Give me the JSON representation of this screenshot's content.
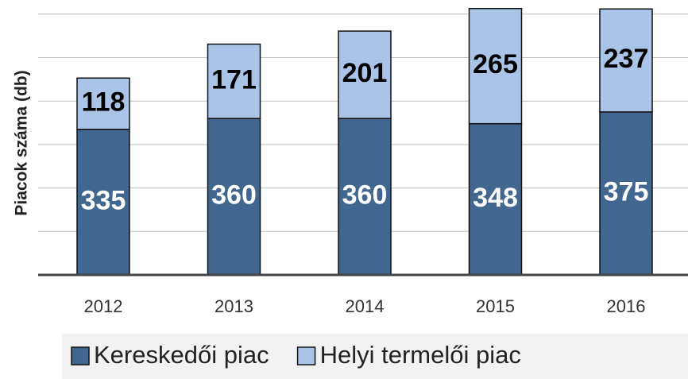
{
  "chart_data": {
    "type": "stacked-bar",
    "y_label": "Piacok száma (db)",
    "categories": [
      "2012",
      "2013",
      "2014",
      "2015",
      "2016"
    ],
    "series": [
      {
        "name": "Kereskedői piac",
        "color": "#41668f",
        "values": [
          335,
          360,
          360,
          348,
          375
        ]
      },
      {
        "name": "Helyi termelői piac",
        "color": "#a9c4e6",
        "values": [
          118,
          171,
          201,
          265,
          237
        ]
      }
    ],
    "ylim": [
      0,
      630
    ],
    "yticks": [
      0,
      100,
      200,
      300,
      400,
      500,
      600
    ],
    "grid": true,
    "legend": "bottom"
  }
}
